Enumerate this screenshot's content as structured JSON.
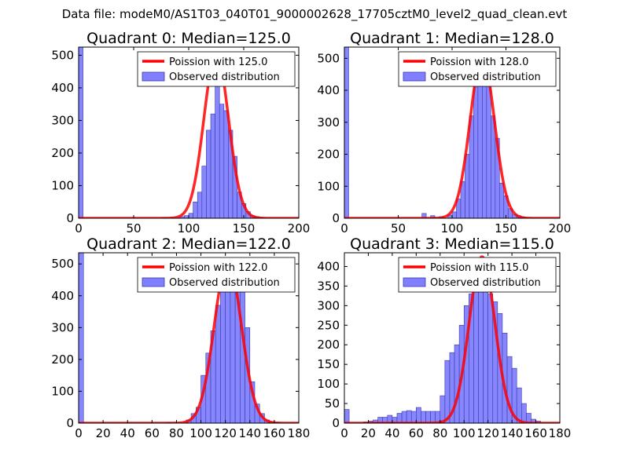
{
  "figure_title": "Data file: modeM0/AS1T03_040T01_9000002628_17705cztM0_level2_quad_clean.evt",
  "colors": {
    "fit": "#ff0000",
    "bar_fill": "#7f7fff",
    "bar_edge": "#3a3aa8"
  },
  "chart_data": [
    {
      "type": "bar",
      "title": "Quadrant 0: Median=125.0",
      "xlim": [
        0,
        200
      ],
      "ylim": [
        0,
        525
      ],
      "xticks": [
        0,
        50,
        100,
        150,
        200
      ],
      "yticks": [
        0,
        100,
        200,
        300,
        400,
        500
      ],
      "bin_width": 4,
      "bins": [
        [
          0,
          525
        ],
        [
          76,
          2
        ],
        [
          84,
          2
        ],
        [
          92,
          5
        ],
        [
          96,
          8
        ],
        [
          100,
          15
        ],
        [
          104,
          50
        ],
        [
          108,
          80
        ],
        [
          112,
          160
        ],
        [
          116,
          270
        ],
        [
          120,
          320
        ],
        [
          124,
          420
        ],
        [
          128,
          350
        ],
        [
          132,
          330
        ],
        [
          136,
          270
        ],
        [
          140,
          190
        ],
        [
          144,
          80
        ],
        [
          148,
          45
        ],
        [
          152,
          20
        ],
        [
          156,
          8
        ],
        [
          160,
          5
        ],
        [
          164,
          2
        ]
      ],
      "fit": {
        "mean": 125,
        "peak": 505
      },
      "legend": [
        "Poission with 125.0",
        "Observed distribution"
      ]
    },
    {
      "type": "bar",
      "title": "Quadrant 1: Median=128.0",
      "xlim": [
        0,
        200
      ],
      "ylim": [
        0,
        535
      ],
      "xticks": [
        0,
        50,
        100,
        150,
        200
      ],
      "yticks": [
        0,
        100,
        200,
        300,
        400,
        500
      ],
      "bin_width": 4,
      "bins": [
        [
          0,
          535
        ],
        [
          72,
          15
        ],
        [
          80,
          8
        ],
        [
          88,
          5
        ],
        [
          96,
          10
        ],
        [
          100,
          20
        ],
        [
          104,
          60
        ],
        [
          108,
          115
        ],
        [
          112,
          200
        ],
        [
          116,
          320
        ],
        [
          120,
          420
        ],
        [
          124,
          500
        ],
        [
          128,
          500
        ],
        [
          132,
          430
        ],
        [
          136,
          320
        ],
        [
          140,
          250
        ],
        [
          144,
          110
        ],
        [
          148,
          70
        ],
        [
          152,
          30
        ],
        [
          156,
          12
        ],
        [
          160,
          8
        ],
        [
          164,
          4
        ]
      ],
      "fit": {
        "mean": 128,
        "peak": 505
      },
      "legend": [
        "Poission with 128.0",
        "Observed distribution"
      ]
    },
    {
      "type": "bar",
      "title": "Quadrant 2: Median=122.0",
      "xlim": [
        0,
        180
      ],
      "ylim": [
        0,
        535
      ],
      "xticks": [
        0,
        20,
        40,
        60,
        80,
        100,
        120,
        140,
        160,
        180
      ],
      "yticks": [
        0,
        100,
        200,
        300,
        400,
        500
      ],
      "bin_width": 4,
      "bins": [
        [
          0,
          535
        ],
        [
          72,
          2
        ],
        [
          88,
          10
        ],
        [
          92,
          30
        ],
        [
          96,
          50
        ],
        [
          100,
          150
        ],
        [
          104,
          220
        ],
        [
          108,
          290
        ],
        [
          112,
          370
        ],
        [
          116,
          440
        ],
        [
          120,
          480
        ],
        [
          124,
          500
        ],
        [
          128,
          440
        ],
        [
          132,
          420
        ],
        [
          136,
          300
        ],
        [
          140,
          130
        ],
        [
          144,
          60
        ],
        [
          148,
          30
        ],
        [
          152,
          10
        ],
        [
          156,
          5
        ],
        [
          160,
          2
        ]
      ],
      "fit": {
        "mean": 122,
        "peak": 510
      },
      "legend": [
        "Poission with 122.0",
        "Observed distribution"
      ]
    },
    {
      "type": "bar",
      "title": "Quadrant 3: Median=115.0",
      "xlim": [
        0,
        180
      ],
      "ylim": [
        0,
        435
      ],
      "xticks": [
        0,
        20,
        40,
        60,
        80,
        100,
        120,
        140,
        160,
        180
      ],
      "yticks": [
        0,
        50,
        100,
        150,
        200,
        250,
        300,
        350,
        400
      ],
      "bin_width": 4,
      "bins": [
        [
          0,
          35
        ],
        [
          16,
          3
        ],
        [
          20,
          5
        ],
        [
          24,
          8
        ],
        [
          28,
          15
        ],
        [
          32,
          15
        ],
        [
          36,
          20
        ],
        [
          40,
          15
        ],
        [
          44,
          25
        ],
        [
          48,
          30
        ],
        [
          52,
          32
        ],
        [
          56,
          30
        ],
        [
          60,
          40
        ],
        [
          64,
          30
        ],
        [
          68,
          30
        ],
        [
          72,
          30
        ],
        [
          76,
          30
        ],
        [
          80,
          70
        ],
        [
          84,
          160
        ],
        [
          88,
          180
        ],
        [
          92,
          200
        ],
        [
          96,
          250
        ],
        [
          100,
          300
        ],
        [
          104,
          330
        ],
        [
          108,
          360
        ],
        [
          112,
          400
        ],
        [
          116,
          380
        ],
        [
          120,
          330
        ],
        [
          124,
          310
        ],
        [
          128,
          280
        ],
        [
          132,
          230
        ],
        [
          136,
          170
        ],
        [
          140,
          140
        ],
        [
          144,
          90
        ],
        [
          148,
          50
        ],
        [
          152,
          25
        ],
        [
          156,
          10
        ],
        [
          160,
          5
        ]
      ],
      "fit": {
        "mean": 115,
        "peak": 425
      },
      "legend": [
        "Poission with 115.0",
        "Observed distribution"
      ]
    }
  ]
}
